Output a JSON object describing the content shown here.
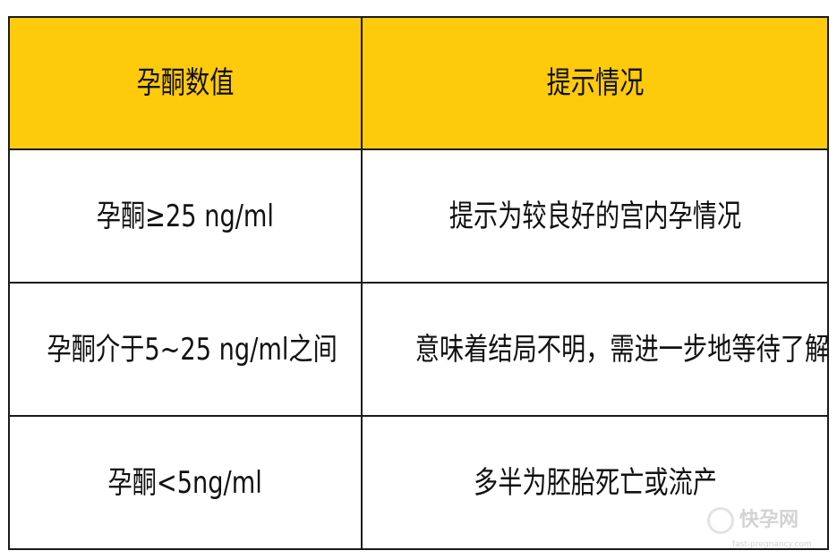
{
  "table": {
    "headers": [
      "孕酮数值",
      "提示情况"
    ],
    "rows": [
      [
        "孕酮≥25 ng/ml",
        "提示为较良好的宫内孕情况"
      ],
      [
        "孕酮介于5~25 ng/ml之间",
        "意味着结局不明，需进一步地等待了解"
      ],
      [
        "孕酮<5ng/ml",
        "多半为胚胎死亡或流产"
      ]
    ],
    "header_color": "#fdca0c"
  },
  "watermark": {
    "logo_text": "快孕网",
    "url": "fast-pregnancy.com"
  }
}
